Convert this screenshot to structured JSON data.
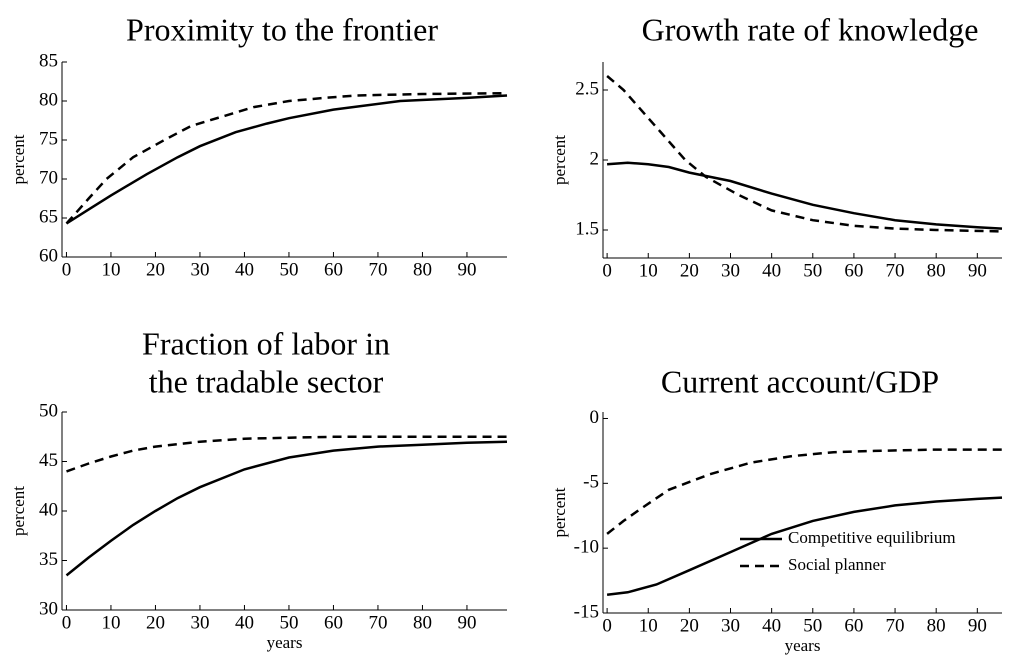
{
  "chart_data": [
    {
      "type": "line",
      "title": [
        "Proximity to the frontier"
      ],
      "ylabel": "percent",
      "xlim": [
        -1,
        99
      ],
      "xticks": [
        0,
        10,
        20,
        30,
        40,
        50,
        60,
        70,
        80,
        90
      ],
      "ylim": [
        60,
        85
      ],
      "yticks": [
        60,
        65,
        70,
        75,
        80,
        85
      ],
      "series": [
        {
          "color": "#000000",
          "dash": "solid",
          "x": [
            0,
            5,
            10,
            18,
            25,
            30,
            38,
            45,
            50,
            60,
            75,
            90,
            99
          ],
          "values": [
            64.3,
            66.1,
            67.9,
            70.6,
            72.8,
            74.2,
            76.0,
            77.1,
            77.8,
            78.9,
            80.0,
            80.4,
            80.7
          ]
        },
        {
          "color": "#000000",
          "dash": "dashed",
          "x": [
            0,
            5,
            9,
            15,
            22,
            28,
            35,
            42,
            50,
            58,
            65,
            80,
            99
          ],
          "values": [
            64.3,
            67.5,
            70.0,
            72.8,
            75.0,
            76.8,
            78.0,
            79.2,
            80.0,
            80.4,
            80.7,
            80.9,
            81.0
          ]
        }
      ]
    },
    {
      "type": "line",
      "title": [
        "Growth rate of knowledge"
      ],
      "ylabel": "percent",
      "xlim": [
        -1,
        96
      ],
      "xticks": [
        0,
        10,
        20,
        30,
        40,
        50,
        60,
        70,
        80,
        90
      ],
      "ylim": [
        1.3,
        2.7
      ],
      "yticks": [
        1.5,
        2,
        2.5
      ],
      "series": [
        {
          "color": "#000000",
          "dash": "solid",
          "x": [
            0,
            5,
            10,
            15,
            20,
            30,
            40,
            50,
            60,
            70,
            80,
            90,
            96
          ],
          "values": [
            1.97,
            1.98,
            1.97,
            1.95,
            1.91,
            1.85,
            1.76,
            1.68,
            1.62,
            1.57,
            1.54,
            1.52,
            1.51
          ]
        },
        {
          "color": "#000000",
          "dash": "dashed",
          "x": [
            0,
            4,
            7,
            10,
            13,
            16,
            19,
            24,
            32,
            40,
            50,
            60,
            70,
            80,
            96
          ],
          "values": [
            2.6,
            2.5,
            2.4,
            2.3,
            2.2,
            2.1,
            2.0,
            1.88,
            1.75,
            1.64,
            1.57,
            1.53,
            1.51,
            1.5,
            1.49
          ]
        }
      ]
    },
    {
      "type": "line",
      "title": [
        "Fraction of labor in",
        "the tradable sector"
      ],
      "ylabel": "percent",
      "xlabel": "years",
      "xlim": [
        -1,
        99
      ],
      "xticks": [
        0,
        10,
        20,
        30,
        40,
        50,
        60,
        70,
        80,
        90
      ],
      "ylim": [
        30,
        50
      ],
      "yticks": [
        30,
        35,
        40,
        45,
        50
      ],
      "series": [
        {
          "color": "#000000",
          "dash": "solid",
          "x": [
            0,
            5,
            10,
            15,
            20,
            25,
            30,
            40,
            50,
            60,
            70,
            80,
            90,
            99
          ],
          "values": [
            33.5,
            35.3,
            37.0,
            38.6,
            40.0,
            41.3,
            42.4,
            44.2,
            45.4,
            46.1,
            46.5,
            46.7,
            46.9,
            47.0
          ]
        },
        {
          "color": "#000000",
          "dash": "dashed",
          "x": [
            0,
            5,
            10,
            15,
            20,
            30,
            40,
            50,
            60,
            80,
            99
          ],
          "values": [
            44.0,
            44.8,
            45.5,
            46.1,
            46.5,
            47.0,
            47.3,
            47.4,
            47.5,
            47.5,
            47.5
          ]
        }
      ]
    },
    {
      "type": "line",
      "title": [
        "Current account/GDP"
      ],
      "ylabel": "percent",
      "xlabel": "years",
      "xlim": [
        -1,
        96
      ],
      "xticks": [
        0,
        10,
        20,
        30,
        40,
        50,
        60,
        70,
        80,
        90
      ],
      "ylim": [
        -15,
        0.5
      ],
      "yticks": [
        -15,
        -10,
        -5,
        0
      ],
      "legend": "lower right",
      "series": [
        {
          "name": "Competitive equilibrium",
          "color": "#000000",
          "dash": "solid",
          "x": [
            0,
            5,
            12,
            20,
            30,
            40,
            50,
            60,
            70,
            80,
            90,
            96
          ],
          "values": [
            -13.6,
            -13.4,
            -12.8,
            -11.7,
            -10.3,
            -8.9,
            -7.9,
            -7.2,
            -6.7,
            -6.4,
            -6.2,
            -6.1
          ]
        },
        {
          "name": "Social planner",
          "color": "#000000",
          "dash": "dashed",
          "x": [
            0,
            4,
            8,
            15,
            25,
            35,
            45,
            55,
            65,
            80,
            96
          ],
          "values": [
            -8.9,
            -7.9,
            -7.0,
            -5.5,
            -4.3,
            -3.4,
            -2.9,
            -2.6,
            -2.5,
            -2.4,
            -2.4
          ]
        }
      ]
    }
  ]
}
